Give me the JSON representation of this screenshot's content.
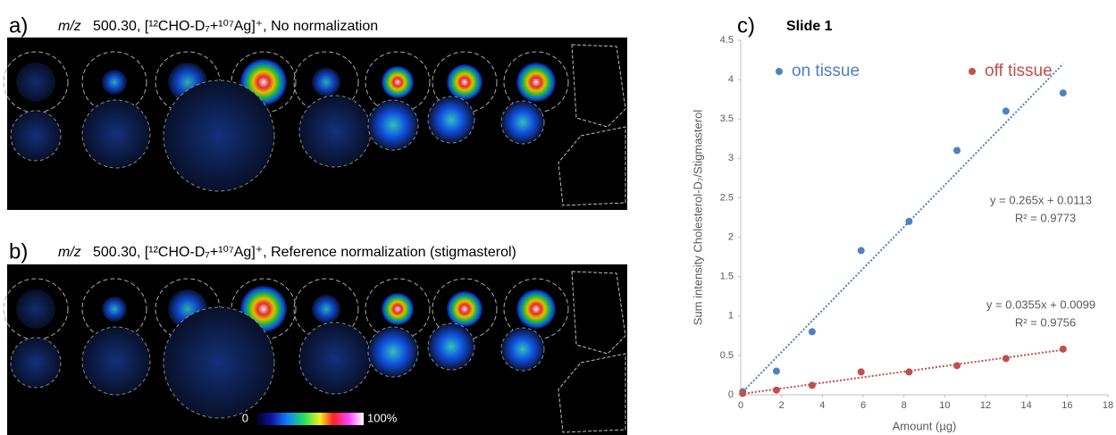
{
  "panels": [
    {
      "label": "a)",
      "ion": "m/z",
      "title": "500.30, [¹²CHO-D₇+¹⁰⁷Ag]⁺, No normalization"
    },
    {
      "label": "b)",
      "ion": "m/z",
      "title": "500.30, [¹²CHO-D₇+¹⁰⁷Ag]⁺, Reference normalization (stigmasterol)",
      "colorbar": [
        "0",
        "100%"
      ]
    }
  ],
  "chart_data": {
    "type": "scatter",
    "label": "c)",
    "title": "Slide 1",
    "x_label": "Amount (µg)",
    "y_label": "Sum intensity Cholesterol-D₇/Stigmasterol",
    "x": [
      0.1,
      1.75,
      3.5,
      5.9,
      8.25,
      10.6,
      13.0,
      15.8
    ],
    "series": [
      {
        "name": "on tissue",
        "color": "#4f81bd",
        "values": [
          0.04,
          0.3,
          0.8,
          1.83,
          2.2,
          3.1,
          3.6,
          3.83
        ]
      },
      {
        "name": "off tissue",
        "color": "#c0504d",
        "values": [
          0.02,
          0.06,
          0.12,
          0.29,
          0.29,
          0.37,
          0.46,
          0.58
        ]
      }
    ],
    "trendlines": [
      {
        "slope": 0.265,
        "intercept": 0.0113,
        "equation": "y = 0.265x + 0.0113",
        "r2": "R² = 0.9773"
      },
      {
        "slope": 0.0355,
        "intercept": 0.0099,
        "equation": "y = 0.0355x + 0.0099",
        "r2": "R² = 0.9756"
      }
    ],
    "xlim": [
      0,
      18
    ],
    "xticks": [
      0,
      2,
      4,
      6,
      8,
      10,
      12,
      14,
      16,
      18
    ],
    "ylim": [
      0,
      4.5
    ],
    "yticks": [
      0,
      0.5,
      1,
      1.5,
      2,
      2.5,
      3,
      3.5,
      4,
      4.5
    ],
    "legend": "top",
    "grid": false
  }
}
